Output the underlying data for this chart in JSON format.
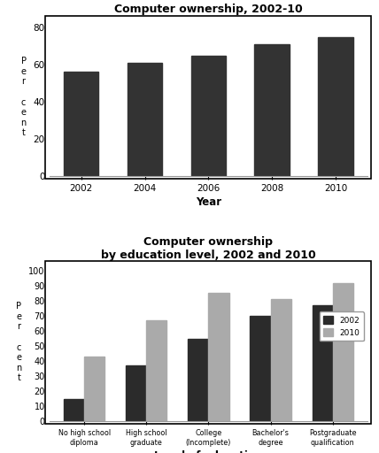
{
  "chart1": {
    "title": "Computer ownership, 2002-10",
    "years": [
      2002,
      2004,
      2006,
      2008,
      2010
    ],
    "values": [
      56,
      61,
      65,
      71,
      75
    ],
    "bar_color": "#333333",
    "xlabel": "Year",
    "ylabel": "P\ne\nr\n \nc\ne\nn\nt",
    "ylim": [
      0,
      85
    ],
    "yticks": [
      0,
      20,
      40,
      60,
      80
    ]
  },
  "chart2": {
    "title": "Computer ownership\nby education level, 2002 and 2010",
    "categories": [
      "No high school\ndiploma",
      "High school\ngraduate",
      "College\n(Incomplete)",
      "Bachelor's\ndegree",
      "Postgraduate\nqualification"
    ],
    "values_2002": [
      15,
      37,
      55,
      70,
      77
    ],
    "values_2010": [
      43,
      67,
      85,
      81,
      92
    ],
    "color_2002": "#2b2b2b",
    "color_2010": "#aaaaaa",
    "xlabel": "Level of education",
    "ylabel": "P\ne\nr\n \nc\ne\nn\nt",
    "ylim": [
      0,
      105
    ],
    "yticks": [
      0,
      10,
      20,
      30,
      40,
      50,
      60,
      70,
      80,
      90,
      100
    ],
    "legend_labels": [
      "2002",
      "2010"
    ]
  },
  "bg_color": "#ffffff"
}
